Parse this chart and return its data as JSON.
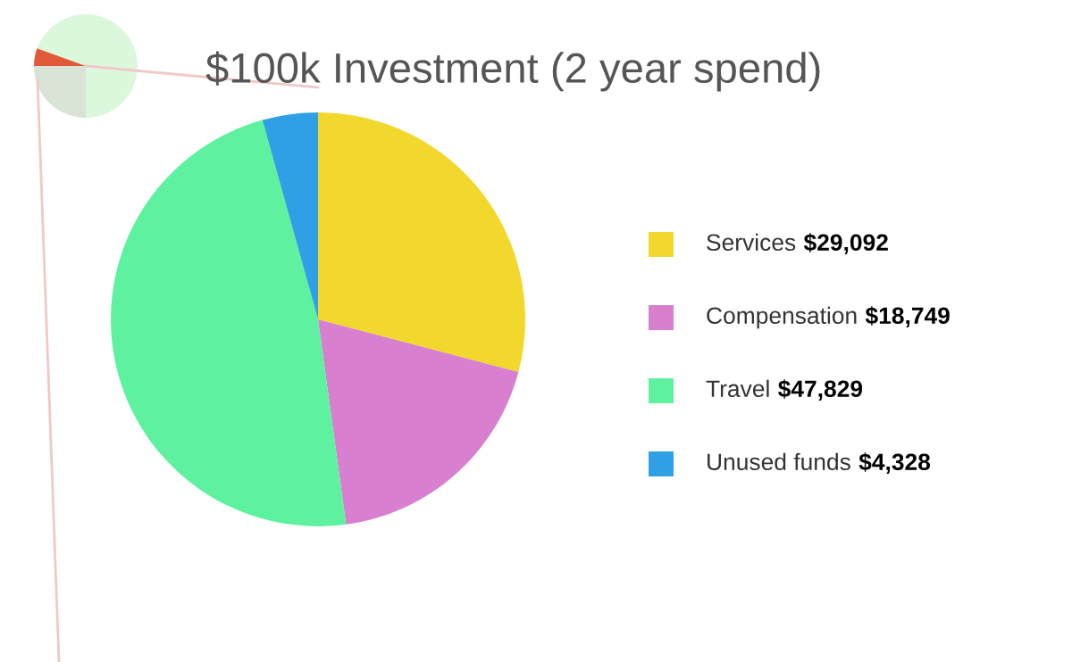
{
  "chart_data": {
    "type": "pie",
    "title": "$100k Investment (2 year spend)",
    "categories": [
      "Services",
      "Compensation",
      "Travel",
      "Unused funds"
    ],
    "values": [
      29092,
      18749,
      47829,
      4328
    ],
    "value_labels": [
      "$29,092",
      "$18,749",
      "$47,829",
      "$4,328"
    ],
    "colors": [
      "#f2d82c",
      "#d87fd0",
      "#5ef2a0",
      "#2fa0e4"
    ],
    "legend": "right"
  }
}
